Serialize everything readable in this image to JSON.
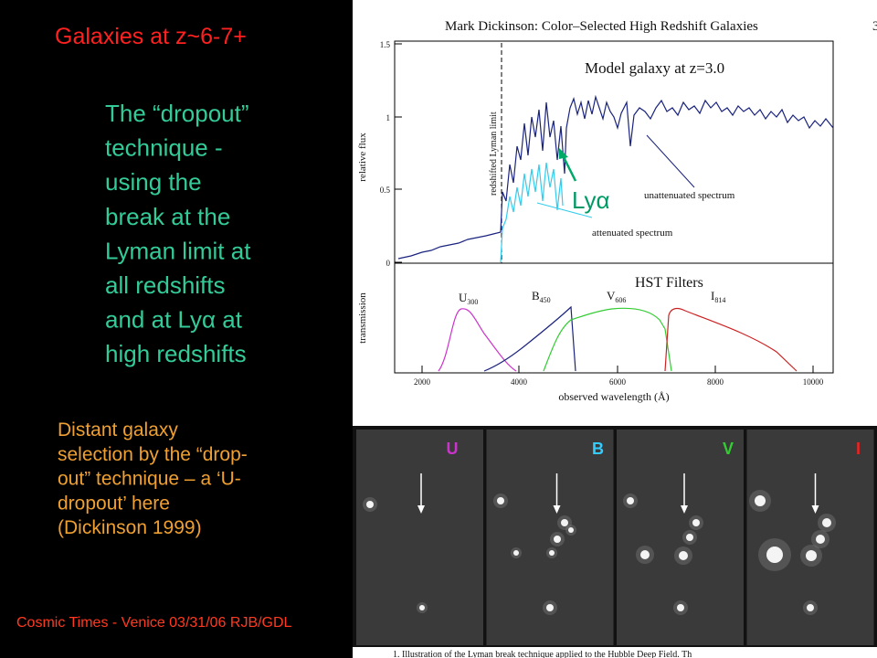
{
  "slide": {
    "title": "Galaxies   at z~6-7+",
    "bullet_lines": [
      "The “dropout”",
      "technique -",
      "using the",
      "break at the",
      "Lyman limit at",
      "all redshifts",
      "and at Lyα at",
      "high redshifts"
    ],
    "note_lines": [
      "Distant galaxy",
      "selection by the “drop-",
      "out” technique – a ‘U-",
      "dropout’ here",
      "(Dickinson 1999)"
    ],
    "footer": "Cosmic Times - Venice 03/31/06  RJB/GDL"
  },
  "figure": {
    "header": "Mark Dickinson: Color–Selected High Redshift Galaxies",
    "page_number": "3",
    "top_panel": {
      "annotation": "Model galaxy at z=3.0",
      "y_label": "relative flux",
      "yticks": [
        "1.5",
        "1",
        "0.5",
        "0"
      ],
      "lyman_limit_label": "redshifted Lyman limit",
      "unattenuated_label": "unattenuated spectrum",
      "attenuated_label": "attenuated spectrum",
      "lya_label": "Lyα"
    },
    "bottom_panel": {
      "title": "HST Filters",
      "y_label": "transmission",
      "filters": [
        {
          "name": "U",
          "sub": "300"
        },
        {
          "name": "B",
          "sub": "450"
        },
        {
          "name": "V",
          "sub": "606"
        },
        {
          "name": "I",
          "sub": "814"
        }
      ],
      "xticks": [
        "2000",
        "4000",
        "6000",
        "8000",
        "10000"
      ],
      "x_label": "observed wavelength (Å)"
    },
    "image_panels": [
      "U",
      "B",
      "V",
      "I"
    ],
    "caption": "1. Illustration of the Lyman break technique applied to the Hubble Deep Field. Th"
  }
}
